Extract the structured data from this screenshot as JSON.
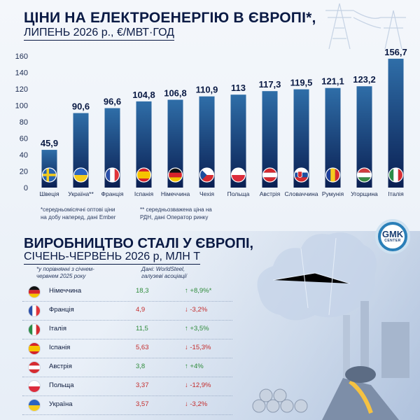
{
  "header": {
    "title": "ЦІНИ НА ЕЛЕКТРОЕНЕРГІЮ В ЄВРОПІ*,",
    "subtitle": "ЛИПЕНЬ 2026 р., €/МВТ·ГОД"
  },
  "chart_data": {
    "type": "bar",
    "categories": [
      "Швеція",
      "Україна**",
      "Франція",
      "Іспанія",
      "Німеччина",
      "Чехія",
      "Польща",
      "Австрія",
      "Словаччина",
      "Румунія",
      "Угорщина",
      "Італія"
    ],
    "values": [
      45.9,
      90.6,
      96.6,
      104.8,
      106.8,
      110.9,
      113,
      117.3,
      119.5,
      121.1,
      123.2,
      156.7
    ],
    "value_labels": [
      "45,9",
      "90,6",
      "96,6",
      "104,8",
      "106,8",
      "110,9",
      "113",
      "117,3",
      "119,5",
      "121,1",
      "123,2",
      "156,7"
    ],
    "flags": [
      "sweden",
      "ukraine",
      "france",
      "spain",
      "germany",
      "czechia",
      "poland",
      "austria",
      "slovakia",
      "romania",
      "hungary",
      "italy"
    ],
    "ylim": [
      0,
      160
    ],
    "yticks": [
      0,
      20,
      40,
      60,
      80,
      100,
      120,
      140,
      160
    ],
    "grid": false
  },
  "notes": {
    "left_line1": "*середньомісячні оптові ціни",
    "left_line2": "на добу наперед, дані Ember",
    "right_line1": "** середньозважена ціна на",
    "right_line2": "РДН, дані Оператор ринку"
  },
  "logo": {
    "main": "GMK",
    "sub": "CENTER"
  },
  "steel": {
    "title": "ВИРОБНИЦТВО СТАЛІ У ЄВРОПІ,",
    "subtitle": "СІЧЕНЬ-ЧЕРВЕНЬ 2026 р, МЛН Т",
    "note_left_1": "*у порівнянні з січнем-",
    "note_left_2": "червнем 2025 року",
    "note_right_1": "Дані: WorldSteel,",
    "note_right_2": "галузеві асоціації",
    "rows": [
      {
        "country": "Німеччина",
        "flag": "germany",
        "value": "18,3",
        "change": "+8,9%*",
        "dir": "up"
      },
      {
        "country": "Франція",
        "flag": "france",
        "value": "4,9",
        "change": "-3,2%",
        "dir": "down"
      },
      {
        "country": "Італія",
        "flag": "italy",
        "value": "11,5",
        "change": "+3,5%",
        "dir": "up"
      },
      {
        "country": "Іспанія",
        "flag": "spain",
        "value": "5,63",
        "change": "-15,3%",
        "dir": "down"
      },
      {
        "country": "Австрія",
        "flag": "austria",
        "value": "3,8",
        "change": "+4%",
        "dir": "up"
      },
      {
        "country": "Польща",
        "flag": "poland",
        "value": "3,37",
        "change": "-12,9%",
        "dir": "down"
      },
      {
        "country": "Україна",
        "flag": "ukraine",
        "value": "3,57",
        "change": "-3,2%",
        "dir": "down"
      }
    ]
  },
  "colors": {
    "bar_top": "#2f6ea8",
    "bar_bottom": "#0a1f52",
    "up": "#2e8b3a",
    "down": "#c42b2b"
  }
}
